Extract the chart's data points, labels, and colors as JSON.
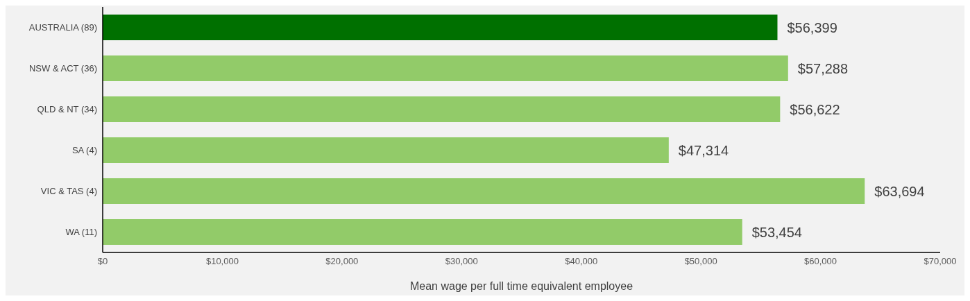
{
  "chart_data": {
    "type": "bar",
    "orientation": "horizontal",
    "xlabel": "Mean wage per full time equivalent employee",
    "categories": [
      "AUSTRALIA (89)",
      "NSW & ACT (36)",
      "QLD & NT (34)",
      "SA (4)",
      "VIC & TAS (4)",
      "WA (11)"
    ],
    "values": [
      56399,
      57288,
      56622,
      47314,
      63694,
      53454
    ],
    "colors": [
      "#007000",
      "#92cb69",
      "#92cb69",
      "#92cb69",
      "#92cb69",
      "#92cb69"
    ],
    "xlim": [
      0,
      70000
    ],
    "xticks": [
      {
        "value": 0,
        "label": "$0"
      },
      {
        "value": 10000,
        "label": "$10,000"
      },
      {
        "value": 20000,
        "label": "$20,000"
      },
      {
        "value": 30000,
        "label": "$30,000"
      },
      {
        "value": 40000,
        "label": "$40,000"
      },
      {
        "value": 50000,
        "label": "$50,000"
      },
      {
        "value": 60000,
        "label": "$60,000"
      },
      {
        "value": 70000,
        "label": "$70,000"
      }
    ],
    "value_labels": [
      "$56,399",
      "$57,288",
      "$56,622",
      "$47,314",
      "$63,694",
      "$53,454"
    ],
    "grid": false,
    "legend": false
  }
}
